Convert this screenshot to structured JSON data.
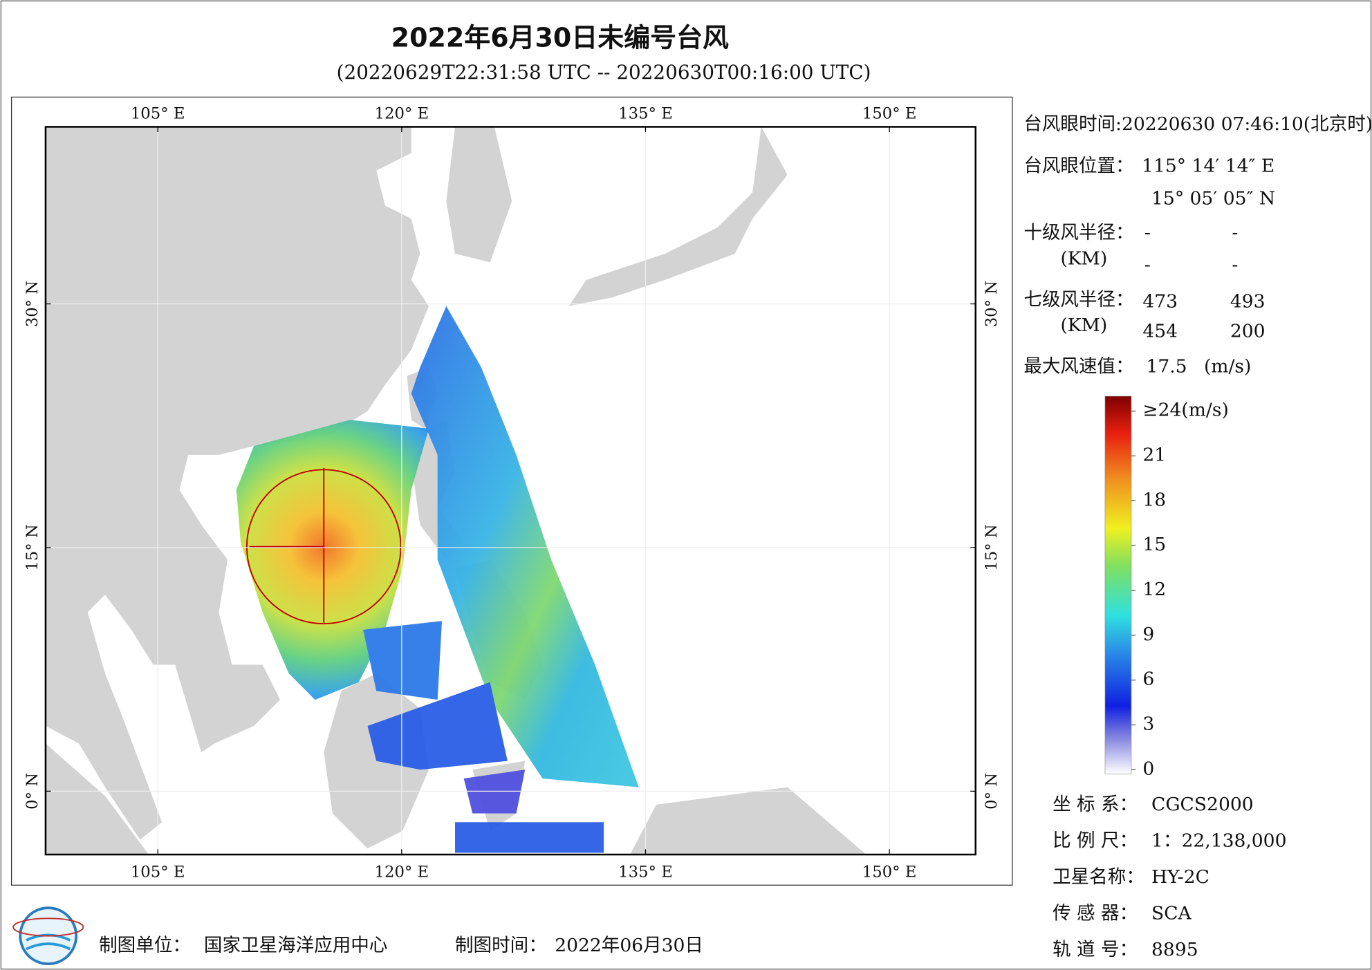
{
  "header": {
    "title": "2022年6月30日未编号台风",
    "subtitle": "(20220629T22:31:58 UTC -- 20220630T00:16:00 UTC)"
  },
  "map": {
    "lonlim": [
      98.1,
      155.3
    ],
    "latlim": [
      -3.9,
      40.9
    ],
    "lon_ticks": [
      {
        "value": 105,
        "label": "105° E"
      },
      {
        "value": 120,
        "label": "120° E"
      },
      {
        "value": 135,
        "label": "135° E"
      },
      {
        "value": 150,
        "label": "150° E"
      }
    ],
    "lat_ticks": [
      {
        "value": 0,
        "label": "0° N"
      },
      {
        "value": 15,
        "label": "15° N"
      },
      {
        "value": 30,
        "label": "30° N"
      }
    ]
  },
  "info": {
    "eye_time": {
      "label": "台风眼时间:",
      "value": "20220630 07:46:10(北京时)"
    },
    "eye_position": {
      "label": "台风眼位置：",
      "lon": "115° 14′ 14″ E",
      "lat": "15° 05′ 05″ N"
    },
    "r10": {
      "label": "十级风半径：",
      "unit": "(KM)",
      "values": [
        "-",
        "-",
        "-",
        "-"
      ]
    },
    "r7": {
      "label": "七级风半径：",
      "unit": "(KM)",
      "values": [
        473,
        493,
        454,
        200
      ]
    },
    "max_wind": {
      "label": "最大风速值：",
      "value": 17.5,
      "unit": "(m/s)"
    }
  },
  "colorbar": {
    "lim": [
      0,
      24
    ],
    "ticks": [
      0,
      3,
      6,
      9,
      12,
      15,
      18,
      21,
      {
        "value": 24,
        "label": "≥24(m/s)"
      }
    ]
  },
  "meta": [
    {
      "label": "坐 标 系：",
      "value": "CGCS2000"
    },
    {
      "label": "比 例 尺：",
      "value": "1：22,138,000"
    },
    {
      "label": "卫星名称：",
      "value": "HY-2C"
    },
    {
      "label": "传 感 器：",
      "value": "SCA"
    },
    {
      "label": "轨 道 号：",
      "value": "8895"
    }
  ],
  "footer": {
    "unit_label": "制图单位：",
    "unit": "国家卫星海洋应用中心",
    "time_label": "制图时间：",
    "time": "2022年06月30日"
  }
}
